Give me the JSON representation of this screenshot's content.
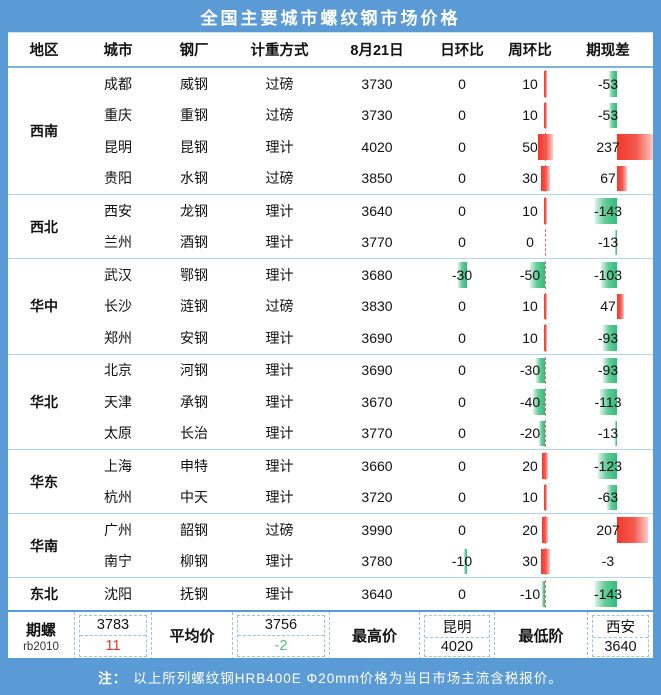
{
  "title": "全国主要城市螺纹钢市场价格",
  "columns": [
    "地区",
    "城市",
    "钢厂",
    "计重方式",
    "8月21日",
    "日环比",
    "周环比",
    "期现差"
  ],
  "regions": [
    {
      "name": "西南",
      "rows": [
        {
          "city": "成都",
          "mill": "威钢",
          "method": "过磅",
          "price": "3730",
          "day_chg": 0,
          "week_chg": 10,
          "basis": -53
        },
        {
          "city": "重庆",
          "mill": "重钢",
          "method": "过磅",
          "price": "3730",
          "day_chg": 0,
          "week_chg": 10,
          "basis": -53
        },
        {
          "city": "昆明",
          "mill": "昆钢",
          "method": "理计",
          "price": "4020",
          "day_chg": 0,
          "week_chg": 50,
          "basis": 237
        },
        {
          "city": "贵阳",
          "mill": "水钢",
          "method": "过磅",
          "price": "3850",
          "day_chg": 0,
          "week_chg": 30,
          "basis": 67
        }
      ]
    },
    {
      "name": "西北",
      "rows": [
        {
          "city": "西安",
          "mill": "龙钢",
          "method": "理计",
          "price": "3640",
          "day_chg": 0,
          "week_chg": 10,
          "basis": -143
        },
        {
          "city": "兰州",
          "mill": "酒钢",
          "method": "理计",
          "price": "3770",
          "day_chg": 0,
          "week_chg": 0,
          "basis": -13
        }
      ]
    },
    {
      "name": "华中",
      "rows": [
        {
          "city": "武汉",
          "mill": "鄂钢",
          "method": "理计",
          "price": "3680",
          "day_chg": -30,
          "week_chg": -50,
          "basis": -103
        },
        {
          "city": "长沙",
          "mill": "涟钢",
          "method": "过磅",
          "price": "3830",
          "day_chg": 0,
          "week_chg": 10,
          "basis": 47
        },
        {
          "city": "郑州",
          "mill": "安钢",
          "method": "理计",
          "price": "3690",
          "day_chg": 0,
          "week_chg": 10,
          "basis": -93
        }
      ]
    },
    {
      "name": "华北",
      "rows": [
        {
          "city": "北京",
          "mill": "河钢",
          "method": "理计",
          "price": "3690",
          "day_chg": 0,
          "week_chg": -30,
          "basis": -93
        },
        {
          "city": "天津",
          "mill": "承钢",
          "method": "理计",
          "price": "3670",
          "day_chg": 0,
          "week_chg": -40,
          "basis": -113
        },
        {
          "city": "太原",
          "mill": "长治",
          "method": "理计",
          "price": "3770",
          "day_chg": 0,
          "week_chg": -20,
          "basis": -13
        }
      ]
    },
    {
      "name": "华东",
      "rows": [
        {
          "city": "上海",
          "mill": "申特",
          "method": "理计",
          "price": "3660",
          "day_chg": 0,
          "week_chg": 20,
          "basis": -123
        },
        {
          "city": "杭州",
          "mill": "中天",
          "method": "理计",
          "price": "3720",
          "day_chg": 0,
          "week_chg": 10,
          "basis": -63
        }
      ]
    },
    {
      "name": "华南",
      "rows": [
        {
          "city": "广州",
          "mill": "韶钢",
          "method": "过磅",
          "price": "3990",
          "day_chg": 0,
          "week_chg": 20,
          "basis": 207
        },
        {
          "city": "南宁",
          "mill": "柳钢",
          "method": "理计",
          "price": "3780",
          "day_chg": -10,
          "week_chg": 30,
          "basis": -3
        }
      ]
    },
    {
      "name": "东北",
      "rows": [
        {
          "city": "沈阳",
          "mill": "抚钢",
          "method": "理计",
          "price": "3640",
          "day_chg": 0,
          "week_chg": -10,
          "basis": -143
        }
      ]
    }
  ],
  "footer": {
    "futures_label": "期螺",
    "futures_code": "rb2010",
    "futures_price": "3783",
    "futures_chg": "11",
    "avg_label": "平均价",
    "avg_price": "3756",
    "avg_chg": "-2",
    "high_label": "最高价",
    "high_city": "昆明",
    "high_price": "4020",
    "low_label": "最低阶",
    "low_city": "西安",
    "low_price": "3640"
  },
  "note": {
    "prefix": "注：",
    "text": "以上所列螺纹钢HRB400E Φ20mm价格为当日市场主流含税报价。"
  },
  "colors": {
    "frame_blue": "#5b9bd5",
    "bar_positive_red": "#f2382b",
    "bar_negative_green": "#2fbd7b",
    "axis_dashed_red": "#e0706a",
    "up_text_red": "#e6392e",
    "down_text_green": "#54bd80",
    "group_separator": "#b3d3ee",
    "dashed_border": "#9dc3e6"
  },
  "bars": {
    "day": {
      "axis": 40,
      "scale": 0.3,
      "pos_mode": "center",
      "axis_line": false
    },
    "week": {
      "axis": 48,
      "scale": 0.3,
      "pos_mode": "center",
      "axis_line": true
    },
    "basis": {
      "axis": 54,
      "scale": 0.152,
      "pos_mode": "axis",
      "axis_line": false
    }
  }
}
